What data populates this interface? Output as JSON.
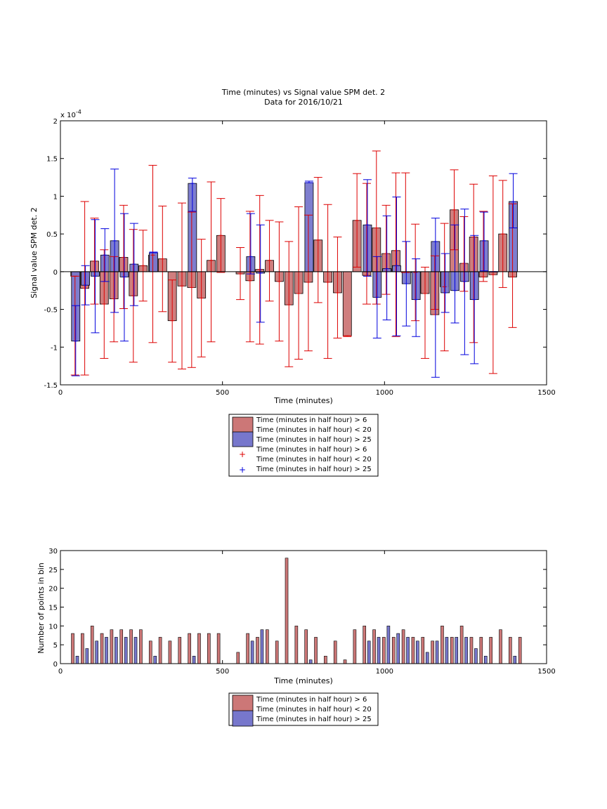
{
  "colors": {
    "red_fill": "#cc7777",
    "blue_fill": "#7777cc",
    "red_err": "#dd0000",
    "blue_err": "#0000dd"
  },
  "chart_data": [
    {
      "type": "bar",
      "title_line1": "Time (minutes) vs Signal value SPM det. 2",
      "title_line2": "Data for 2016/10/21",
      "xlabel": "Time (minutes)",
      "ylabel": "Signal value SPM det. 2",
      "y_exponent_label": "x 10",
      "y_exponent": "-4",
      "xlim": [
        0,
        1500
      ],
      "ylim": [
        -1.5,
        2
      ],
      "xticks": [
        "0",
        "500",
        "1000",
        "1500"
      ],
      "yticks": [
        "-1.5",
        "-1",
        "-0.5",
        "0",
        "0.5",
        "1",
        "1.5",
        "2"
      ],
      "legend": [
        "Time (minutes in half hour) > 6",
        "Time (minutes in half hour) < 20",
        "Time (minutes in half hour) > 25",
        "Time (minutes in half hour) > 6",
        "Time (minutes in half hour) < 20",
        "Time (minutes in half hour) > 25"
      ],
      "series": [
        {
          "name": "Time (minutes in half hour) > 6 / < 20",
          "color": "#cc7777",
          "x": [
            45,
            75,
            105,
            135,
            165,
            195,
            225,
            255,
            285,
            315,
            345,
            375,
            405,
            435,
            465,
            495,
            555,
            585,
            615,
            645,
            675,
            705,
            735,
            765,
            795,
            825,
            855,
            885,
            915,
            945,
            975,
            1005,
            1035,
            1065,
            1095,
            1125,
            1155,
            1185,
            1215,
            1245,
            1275,
            1305,
            1335,
            1365,
            1395
          ],
          "y": [
            -0.06,
            -0.22,
            0.14,
            -0.43,
            -0.36,
            0.19,
            -0.32,
            0.08,
            0.22,
            0.17,
            -0.65,
            -0.19,
            -0.21,
            -0.35,
            0.15,
            0.48,
            -0.03,
            -0.12,
            0.03,
            0.15,
            -0.13,
            -0.44,
            -0.29,
            -0.14,
            0.42,
            -0.14,
            -0.28,
            -0.85,
            0.68,
            -0.05,
            0.58,
            0.24,
            0.28,
            -0.01,
            -0.01,
            -0.29,
            -0.57,
            -0.2,
            0.82,
            0.11,
            0.46,
            -0.07,
            -0.04,
            0.5,
            -0.07
          ],
          "err_low": [
            -1.37,
            -1.37,
            -0.43,
            -1.15,
            -0.93,
            -0.49,
            -1.2,
            -0.39,
            -0.94,
            -0.53,
            -1.2,
            -1.29,
            -1.27,
            -1.13,
            -0.93,
            -0.01,
            -0.37,
            -0.93,
            -0.96,
            -0.39,
            -0.92,
            -1.26,
            -1.16,
            -1.05,
            -0.41,
            -1.15,
            -0.88,
            -0.86,
            0.06,
            -0.43,
            -0.43,
            -0.3,
            -0.86,
            -0.01,
            -0.65,
            -1.15,
            -0.5,
            -1.05,
            0.29,
            -0.26,
            -0.94,
            -0.13,
            -1.35,
            -0.21,
            -0.74
          ],
          "err_high": [
            -0.06,
            0.93,
            0.71,
            0.29,
            0.2,
            0.88,
            0.56,
            0.55,
            1.41,
            0.87,
            -0.11,
            0.91,
            0.79,
            0.43,
            1.19,
            0.97,
            0.32,
            0.8,
            1.01,
            0.68,
            0.66,
            0.4,
            0.86,
            0.75,
            1.25,
            0.89,
            0.46,
            -0.85,
            1.3,
            1.17,
            1.6,
            0.88,
            1.31,
            1.31,
            0.63,
            0.06,
            0.21,
            0.64,
            1.35,
            0.73,
            1.16,
            0.8,
            1.27,
            1.21,
            0.9
          ]
        },
        {
          "name": "Time (minutes in half hour) > 25",
          "color": "#7777cc",
          "x": [
            45,
            75,
            105,
            135,
            165,
            195,
            225,
            285,
            405,
            585,
            615,
            765,
            945,
            975,
            1005,
            1035,
            1065,
            1095,
            1155,
            1185,
            1215,
            1245,
            1275,
            1305,
            1335,
            1395
          ],
          "y": [
            -0.92,
            -0.18,
            -0.06,
            0.22,
            0.41,
            -0.07,
            0.1,
            0.25,
            1.17,
            0.2,
            -0.02,
            1.18,
            0.62,
            -0.34,
            0.04,
            0.08,
            -0.16,
            -0.37,
            0.4,
            -0.28,
            -0.25,
            -0.13,
            -0.37,
            0.41,
            0.0,
            0.93
          ],
          "err_low": [
            -1.38,
            -0.44,
            -0.81,
            -0.13,
            -0.54,
            -0.92,
            -0.45,
            0.25,
            0.8,
            -0.03,
            -0.67,
            1.18,
            -0.06,
            -0.88,
            -0.64,
            -0.85,
            -0.72,
            -0.86,
            -1.4,
            -0.54,
            -0.68,
            -1.1,
            -1.22,
            0.01,
            0.0,
            0.58
          ],
          "err_high": [
            -0.45,
            0.08,
            0.69,
            0.57,
            1.36,
            0.77,
            0.64,
            0.26,
            1.24,
            0.77,
            0.62,
            1.2,
            1.22,
            0.2,
            0.74,
            0.99,
            0.4,
            0.17,
            0.71,
            0.24,
            0.62,
            0.83,
            0.48,
            0.79,
            0.0,
            1.3
          ]
        }
      ]
    },
    {
      "type": "bar",
      "xlabel": "Time (minutes)",
      "ylabel": "Number of points in bin",
      "xlim": [
        0,
        1500
      ],
      "ylim": [
        0,
        30
      ],
      "xticks": [
        "0",
        "500",
        "1000",
        "1500"
      ],
      "yticks": [
        "0",
        "5",
        "10",
        "15",
        "20",
        "25",
        "30"
      ],
      "legend": [
        "Time (minutes in half hour) > 6",
        "Time (minutes in half hour) < 20",
        "Time (minutes in half hour) > 25"
      ],
      "series": [
        {
          "name": "Time (minutes in half hour) > 6 / < 20",
          "color": "#cc7777",
          "x": [
            38,
            68,
            98,
            128,
            158,
            188,
            218,
            248,
            278,
            308,
            338,
            368,
            398,
            428,
            458,
            488,
            548,
            578,
            608,
            638,
            668,
            698,
            728,
            758,
            788,
            818,
            848,
            878,
            908,
            938,
            968,
            998,
            1028,
            1058,
            1088,
            1118,
            1148,
            1178,
            1208,
            1238,
            1268,
            1298,
            1328,
            1358,
            1388,
            1418
          ],
          "y": [
            8,
            8,
            10,
            8,
            9,
            9,
            9,
            9,
            6,
            7,
            6,
            7,
            8,
            8,
            8,
            8,
            3,
            8,
            7,
            9,
            6,
            28,
            10,
            9,
            7,
            2,
            6,
            1,
            9,
            10,
            9,
            7,
            7,
            9,
            7,
            7,
            6,
            10,
            7,
            10,
            7,
            7,
            7,
            9,
            7,
            7
          ]
        },
        {
          "name": "Time (minutes in half hour) > 25",
          "color": "#7777cc",
          "x": [
            52,
            82,
            112,
            142,
            172,
            202,
            232,
            292,
            412,
            592,
            622,
            772,
            952,
            982,
            1012,
            1042,
            1072,
            1102,
            1132,
            1162,
            1192,
            1222,
            1252,
            1282,
            1312,
            1402
          ],
          "y": [
            2,
            4,
            6,
            7,
            7,
            7,
            7,
            2,
            2,
            6,
            9,
            1,
            6,
            7,
            10,
            8,
            7,
            6,
            3,
            6,
            7,
            7,
            7,
            4,
            2,
            2
          ]
        }
      ]
    }
  ]
}
